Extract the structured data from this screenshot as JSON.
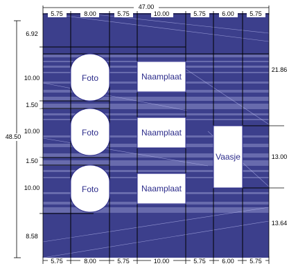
{
  "title_dimension": "47.00",
  "top_dims": [
    "5.75",
    "8.00",
    "5.75",
    "10.00",
    "5.75",
    "6.00",
    "5.75"
  ],
  "bottom_dims": [
    "5.75",
    "8.00",
    "5.75",
    "10.00",
    "5.75",
    "6.00",
    "5.75"
  ],
  "left_dims": [
    "6.92",
    "10.00",
    "1.50",
    "10.00",
    "1.50",
    "10.00",
    "8.58"
  ],
  "left_total": "48.50",
  "right_dims": [
    "21.86",
    "13.00",
    "13.64"
  ],
  "photo_labels": [
    "Foto",
    "Foto",
    "Foto"
  ],
  "nameplate_labels": [
    "Naamplaat",
    "Naamplaat",
    "Naamplaat"
  ],
  "vase_label": "Vaasje",
  "colors": {
    "board": "#3c3f8c",
    "stripe": "#8c8fc8",
    "cutout": "#ffffff",
    "line": "#000000",
    "label_text": "#2b2b8a"
  }
}
